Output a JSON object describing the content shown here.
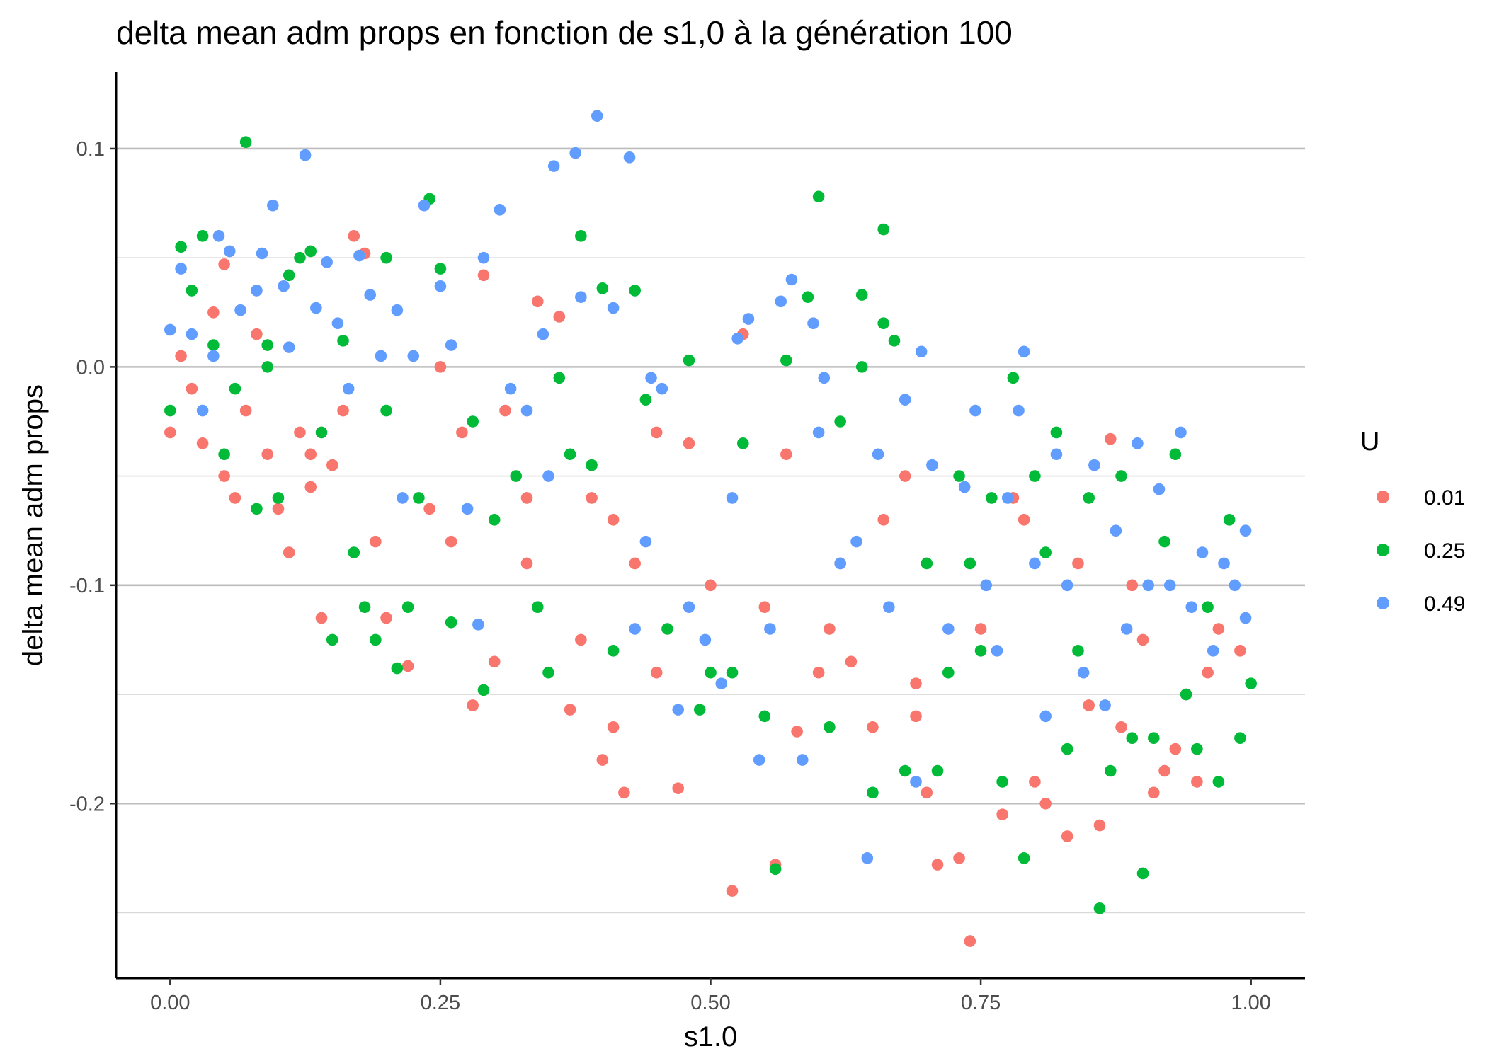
{
  "chart_data": {
    "type": "scatter",
    "title": "delta mean adm props en fonction de s1,0 à la génération 100",
    "xlabel": "s1.0",
    "ylabel": "delta mean adm props",
    "xlim": [
      -0.05,
      1.05
    ],
    "ylim": [
      -0.28,
      0.135
    ],
    "x_ticks": [
      0.0,
      0.25,
      0.5,
      0.75,
      1.0
    ],
    "x_tick_labels": [
      "0.00",
      "0.25",
      "0.50",
      "0.75",
      "1.00"
    ],
    "y_ticks": [
      -0.2,
      -0.1,
      0.0,
      0.1
    ],
    "y_tick_labels": [
      "-0.2",
      "-0.1",
      "0.0",
      "0.1"
    ],
    "y_minor_gridlines": [
      -0.25,
      -0.15,
      -0.05,
      0.05
    ],
    "grid": "horizontal",
    "legend": {
      "title": "U",
      "position": "right",
      "entries": [
        {
          "label": "0.01",
          "color": "#F8766D"
        },
        {
          "label": "0.25",
          "color": "#00BA38"
        },
        {
          "label": "0.49",
          "color": "#619CFF"
        }
      ]
    },
    "series": [
      {
        "name": "0.01",
        "color": "#F8766D",
        "points": [
          [
            0.0,
            -0.03
          ],
          [
            0.01,
            0.005
          ],
          [
            0.02,
            -0.01
          ],
          [
            0.03,
            -0.035
          ],
          [
            0.04,
            0.025
          ],
          [
            0.05,
            0.047
          ],
          [
            0.06,
            -0.06
          ],
          [
            0.07,
            -0.02
          ],
          [
            0.08,
            0.015
          ],
          [
            0.09,
            -0.04
          ],
          [
            0.1,
            -0.065
          ],
          [
            0.11,
            -0.085
          ],
          [
            0.12,
            -0.03
          ],
          [
            0.13,
            -0.055
          ],
          [
            0.14,
            -0.115
          ],
          [
            0.15,
            -0.045
          ],
          [
            0.16,
            -0.02
          ],
          [
            0.17,
            0.06
          ],
          [
            0.18,
            0.052
          ],
          [
            0.19,
            -0.08
          ],
          [
            0.2,
            -0.115
          ],
          [
            0.22,
            -0.137
          ],
          [
            0.24,
            -0.065
          ],
          [
            0.26,
            -0.08
          ],
          [
            0.28,
            -0.155
          ],
          [
            0.29,
            0.042
          ],
          [
            0.3,
            -0.135
          ],
          [
            0.31,
            -0.02
          ],
          [
            0.33,
            -0.09
          ],
          [
            0.34,
            0.03
          ],
          [
            0.36,
            0.023
          ],
          [
            0.37,
            -0.157
          ],
          [
            0.38,
            -0.125
          ],
          [
            0.39,
            -0.06
          ],
          [
            0.4,
            -0.18
          ],
          [
            0.41,
            -0.165
          ],
          [
            0.42,
            -0.195
          ],
          [
            0.43,
            -0.09
          ],
          [
            0.45,
            -0.14
          ],
          [
            0.47,
            -0.193
          ],
          [
            0.48,
            -0.035
          ],
          [
            0.5,
            -0.1
          ],
          [
            0.52,
            -0.24
          ],
          [
            0.53,
            0.015
          ],
          [
            0.55,
            -0.11
          ],
          [
            0.56,
            -0.228
          ],
          [
            0.58,
            -0.167
          ],
          [
            0.6,
            -0.14
          ],
          [
            0.62,
            -0.09
          ],
          [
            0.63,
            -0.135
          ],
          [
            0.65,
            -0.165
          ],
          [
            0.66,
            -0.07
          ],
          [
            0.68,
            -0.05
          ],
          [
            0.69,
            -0.16
          ],
          [
            0.7,
            -0.195
          ],
          [
            0.71,
            -0.228
          ],
          [
            0.73,
            -0.225
          ],
          [
            0.74,
            -0.263
          ],
          [
            0.75,
            -0.12
          ],
          [
            0.77,
            -0.205
          ],
          [
            0.78,
            -0.06
          ],
          [
            0.8,
            -0.19
          ],
          [
            0.81,
            -0.2
          ],
          [
            0.83,
            -0.215
          ],
          [
            0.84,
            -0.09
          ],
          [
            0.85,
            -0.155
          ],
          [
            0.86,
            -0.21
          ],
          [
            0.88,
            -0.165
          ],
          [
            0.89,
            -0.1
          ],
          [
            0.9,
            -0.125
          ],
          [
            0.91,
            -0.195
          ],
          [
            0.92,
            -0.185
          ],
          [
            0.93,
            -0.175
          ],
          [
            0.94,
            -0.15
          ],
          [
            0.95,
            -0.19
          ],
          [
            0.96,
            -0.14
          ],
          [
            0.97,
            -0.12
          ],
          [
            0.99,
            -0.13
          ],
          [
            0.69,
            -0.145
          ],
          [
            0.87,
            -0.033
          ],
          [
            0.45,
            -0.03
          ],
          [
            0.27,
            -0.03
          ],
          [
            0.13,
            -0.04
          ],
          [
            0.05,
            -0.05
          ],
          [
            0.33,
            -0.06
          ],
          [
            0.57,
            -0.04
          ],
          [
            0.79,
            -0.07
          ],
          [
            0.61,
            -0.12
          ],
          [
            0.25,
            0.0
          ],
          [
            0.41,
            -0.07
          ]
        ]
      },
      {
        "name": "0.25",
        "color": "#00BA38",
        "points": [
          [
            0.0,
            -0.02
          ],
          [
            0.01,
            0.055
          ],
          [
            0.02,
            0.035
          ],
          [
            0.03,
            0.06
          ],
          [
            0.04,
            0.01
          ],
          [
            0.05,
            -0.04
          ],
          [
            0.06,
            -0.01
          ],
          [
            0.07,
            0.103
          ],
          [
            0.08,
            -0.065
          ],
          [
            0.09,
            0.0
          ],
          [
            0.1,
            -0.06
          ],
          [
            0.11,
            0.042
          ],
          [
            0.12,
            0.05
          ],
          [
            0.13,
            0.053
          ],
          [
            0.14,
            -0.03
          ],
          [
            0.15,
            -0.125
          ],
          [
            0.16,
            0.012
          ],
          [
            0.17,
            -0.085
          ],
          [
            0.18,
            -0.11
          ],
          [
            0.19,
            -0.125
          ],
          [
            0.2,
            0.05
          ],
          [
            0.21,
            -0.138
          ],
          [
            0.22,
            -0.11
          ],
          [
            0.23,
            -0.06
          ],
          [
            0.24,
            0.077
          ],
          [
            0.25,
            0.045
          ],
          [
            0.26,
            -0.117
          ],
          [
            0.28,
            -0.025
          ],
          [
            0.29,
            -0.148
          ],
          [
            0.3,
            -0.07
          ],
          [
            0.32,
            -0.05
          ],
          [
            0.34,
            -0.11
          ],
          [
            0.35,
            -0.14
          ],
          [
            0.37,
            -0.04
          ],
          [
            0.38,
            0.06
          ],
          [
            0.39,
            -0.045
          ],
          [
            0.4,
            0.036
          ],
          [
            0.41,
            -0.13
          ],
          [
            0.43,
            0.035
          ],
          [
            0.44,
            -0.015
          ],
          [
            0.46,
            -0.12
          ],
          [
            0.48,
            0.003
          ],
          [
            0.49,
            -0.157
          ],
          [
            0.5,
            -0.14
          ],
          [
            0.52,
            -0.14
          ],
          [
            0.53,
            -0.035
          ],
          [
            0.55,
            -0.16
          ],
          [
            0.56,
            -0.23
          ],
          [
            0.57,
            0.003
          ],
          [
            0.59,
            0.032
          ],
          [
            0.6,
            0.078
          ],
          [
            0.61,
            -0.165
          ],
          [
            0.62,
            -0.025
          ],
          [
            0.64,
            0.033
          ],
          [
            0.65,
            -0.195
          ],
          [
            0.66,
            0.063
          ],
          [
            0.67,
            0.012
          ],
          [
            0.68,
            -0.185
          ],
          [
            0.7,
            -0.09
          ],
          [
            0.71,
            -0.185
          ],
          [
            0.72,
            -0.14
          ],
          [
            0.73,
            -0.05
          ],
          [
            0.74,
            -0.09
          ],
          [
            0.75,
            -0.13
          ],
          [
            0.76,
            -0.06
          ],
          [
            0.77,
            -0.19
          ],
          [
            0.78,
            -0.005
          ],
          [
            0.79,
            -0.225
          ],
          [
            0.8,
            -0.05
          ],
          [
            0.81,
            -0.085
          ],
          [
            0.82,
            -0.03
          ],
          [
            0.83,
            -0.175
          ],
          [
            0.84,
            -0.13
          ],
          [
            0.85,
            -0.06
          ],
          [
            0.86,
            -0.248
          ],
          [
            0.87,
            -0.185
          ],
          [
            0.88,
            -0.05
          ],
          [
            0.89,
            -0.17
          ],
          [
            0.9,
            -0.232
          ],
          [
            0.91,
            -0.17
          ],
          [
            0.92,
            -0.08
          ],
          [
            0.93,
            -0.04
          ],
          [
            0.94,
            -0.15
          ],
          [
            0.95,
            -0.175
          ],
          [
            0.96,
            -0.11
          ],
          [
            0.97,
            -0.19
          ],
          [
            0.98,
            -0.07
          ],
          [
            0.99,
            -0.17
          ],
          [
            1.0,
            -0.145
          ],
          [
            0.66,
            0.02
          ],
          [
            0.64,
            0.0
          ],
          [
            0.36,
            -0.005
          ],
          [
            0.09,
            0.01
          ],
          [
            0.2,
            -0.02
          ]
        ]
      },
      {
        "name": "0.49",
        "color": "#619CFF",
        "points": [
          [
            0.0,
            0.017
          ],
          [
            0.01,
            0.045
          ],
          [
            0.02,
            0.015
          ],
          [
            0.03,
            -0.02
          ],
          [
            0.04,
            0.005
          ],
          [
            0.045,
            0.06
          ],
          [
            0.055,
            0.053
          ],
          [
            0.065,
            0.026
          ],
          [
            0.08,
            0.035
          ],
          [
            0.085,
            0.052
          ],
          [
            0.095,
            0.074
          ],
          [
            0.105,
            0.037
          ],
          [
            0.11,
            0.009
          ],
          [
            0.125,
            0.097
          ],
          [
            0.135,
            0.027
          ],
          [
            0.145,
            0.048
          ],
          [
            0.155,
            0.02
          ],
          [
            0.165,
            -0.01
          ],
          [
            0.175,
            0.051
          ],
          [
            0.185,
            0.033
          ],
          [
            0.195,
            0.005
          ],
          [
            0.21,
            0.026
          ],
          [
            0.215,
            -0.06
          ],
          [
            0.225,
            0.005
          ],
          [
            0.235,
            0.074
          ],
          [
            0.25,
            0.037
          ],
          [
            0.26,
            0.01
          ],
          [
            0.275,
            -0.065
          ],
          [
            0.285,
            -0.118
          ],
          [
            0.29,
            0.05
          ],
          [
            0.305,
            0.072
          ],
          [
            0.315,
            -0.01
          ],
          [
            0.33,
            -0.02
          ],
          [
            0.345,
            0.015
          ],
          [
            0.355,
            0.092
          ],
          [
            0.375,
            0.098
          ],
          [
            0.38,
            0.032
          ],
          [
            0.395,
            0.115
          ],
          [
            0.41,
            0.027
          ],
          [
            0.425,
            0.096
          ],
          [
            0.43,
            -0.12
          ],
          [
            0.445,
            -0.005
          ],
          [
            0.455,
            -0.01
          ],
          [
            0.47,
            -0.157
          ],
          [
            0.48,
            -0.11
          ],
          [
            0.495,
            -0.125
          ],
          [
            0.51,
            -0.145
          ],
          [
            0.525,
            0.013
          ],
          [
            0.535,
            0.022
          ],
          [
            0.545,
            -0.18
          ],
          [
            0.555,
            -0.12
          ],
          [
            0.565,
            0.03
          ],
          [
            0.575,
            0.04
          ],
          [
            0.585,
            -0.18
          ],
          [
            0.595,
            0.02
          ],
          [
            0.605,
            -0.005
          ],
          [
            0.62,
            -0.09
          ],
          [
            0.635,
            -0.08
          ],
          [
            0.645,
            -0.225
          ],
          [
            0.655,
            -0.04
          ],
          [
            0.665,
            -0.11
          ],
          [
            0.68,
            -0.015
          ],
          [
            0.69,
            -0.19
          ],
          [
            0.695,
            0.007
          ],
          [
            0.705,
            -0.045
          ],
          [
            0.72,
            -0.12
          ],
          [
            0.735,
            -0.055
          ],
          [
            0.745,
            -0.02
          ],
          [
            0.755,
            -0.1
          ],
          [
            0.765,
            -0.13
          ],
          [
            0.775,
            -0.06
          ],
          [
            0.785,
            -0.02
          ],
          [
            0.79,
            0.007
          ],
          [
            0.8,
            -0.09
          ],
          [
            0.81,
            -0.16
          ],
          [
            0.82,
            -0.04
          ],
          [
            0.83,
            -0.1
          ],
          [
            0.845,
            -0.14
          ],
          [
            0.855,
            -0.045
          ],
          [
            0.865,
            -0.155
          ],
          [
            0.875,
            -0.075
          ],
          [
            0.885,
            -0.12
          ],
          [
            0.895,
            -0.035
          ],
          [
            0.905,
            -0.1
          ],
          [
            0.915,
            -0.056
          ],
          [
            0.925,
            -0.1
          ],
          [
            0.935,
            -0.03
          ],
          [
            0.945,
            -0.11
          ],
          [
            0.955,
            -0.085
          ],
          [
            0.965,
            -0.13
          ],
          [
            0.975,
            -0.09
          ],
          [
            0.985,
            -0.1
          ],
          [
            0.995,
            -0.075
          ],
          [
            0.995,
            -0.115
          ],
          [
            0.6,
            -0.03
          ],
          [
            0.52,
            -0.06
          ],
          [
            0.44,
            -0.08
          ],
          [
            0.35,
            -0.05
          ]
        ]
      }
    ]
  }
}
